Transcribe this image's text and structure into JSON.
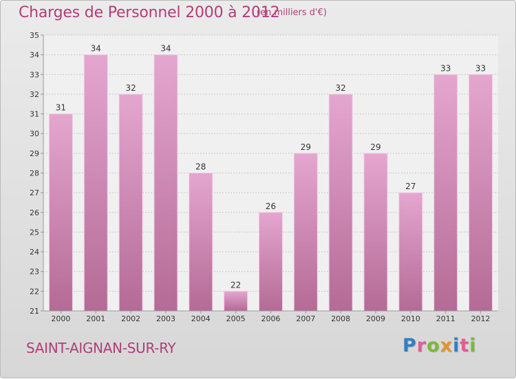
{
  "header": {
    "title": "Charges de Personnel 2000 à 2012",
    "subtitle": "(en milliers d'€)"
  },
  "footer": {
    "commune": "SAINT-AIGNAN-SUR-RY",
    "logo": "Proxiti"
  },
  "colors": {
    "title": "#b13d78",
    "bar_top": "#e4a6cf",
    "bar_bottom": "#b46b96",
    "bar_edge": "#f3cde4"
  },
  "chart_data": {
    "type": "bar",
    "categories": [
      "2000",
      "2001",
      "2002",
      "2003",
      "2004",
      "2005",
      "2006",
      "2007",
      "2008",
      "2009",
      "2010",
      "2011",
      "2012"
    ],
    "values": [
      31,
      34,
      32,
      34,
      28,
      22,
      26,
      29,
      32,
      29,
      27,
      33,
      33
    ],
    "title": "Charges de Personnel 2000 à 2012",
    "ylim": [
      21,
      35
    ],
    "yticks": [
      21,
      22,
      23,
      24,
      25,
      26,
      27,
      28,
      29,
      30,
      31,
      32,
      33,
      34,
      35
    ],
    "grid": true,
    "data_labels": true
  }
}
